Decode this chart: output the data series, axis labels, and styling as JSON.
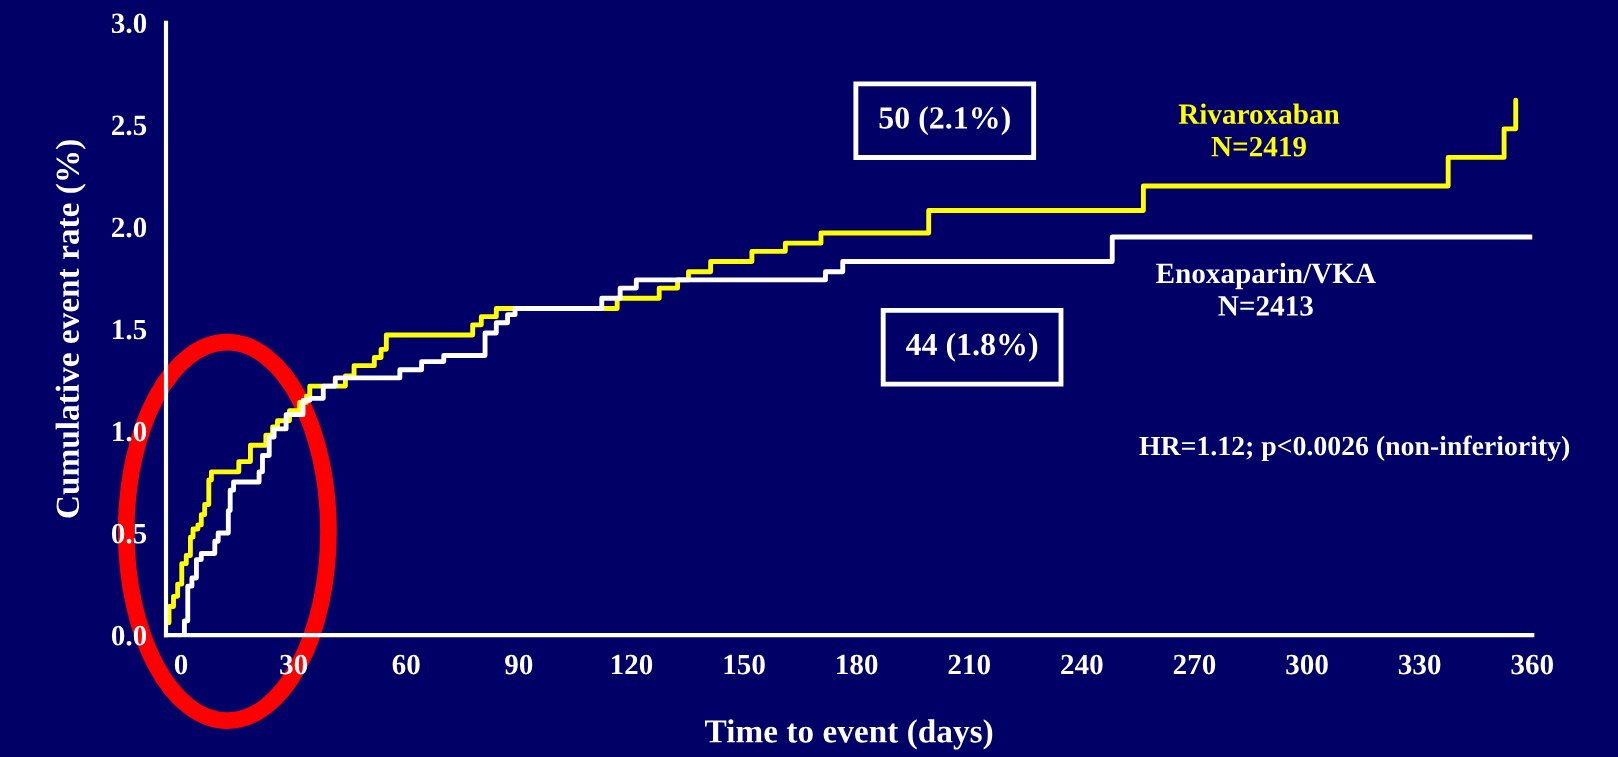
{
  "chart_data": {
    "type": "step",
    "xlabel": "Time to event (days)",
    "ylabel": "Cumulative event rate (%)",
    "series": [
      {
        "name": "Rivaroxaban\nN=2419",
        "color": "#ffff00",
        "x": [
          -3.2,
          -3.2,
          -2.0,
          -0.9,
          0.2,
          1.4,
          2.5,
          3.2,
          4.5,
          5.4,
          6.3,
          7.4,
          8.1,
          15.4,
          18.5,
          22.6,
          24.4,
          25.7,
          28.9,
          31.6,
          33.4,
          34.3,
          43.8,
          46.1,
          51.5,
          53.3,
          54.7,
          77.7,
          80,
          84,
          116.2,
          127.4,
          132.3,
          135.2,
          141.1,
          152.1,
          161.0,
          170.5,
          199.2,
          256.4,
          337.6,
          352.5,
          355.6
        ],
        "values": [
          0.06,
          0.14,
          0.19,
          0.25,
          0.35,
          0.39,
          0.48,
          0.52,
          0.54,
          0.59,
          0.64,
          0.76,
          0.8,
          0.85,
          0.93,
          0.98,
          1.02,
          1.05,
          1.1,
          1.14,
          1.17,
          1.22,
          1.27,
          1.32,
          1.36,
          1.4,
          1.47,
          1.52,
          1.56,
          1.6,
          1.65,
          1.7,
          1.74,
          1.78,
          1.83,
          1.88,
          1.92,
          1.97,
          2.08,
          2.2,
          2.34,
          2.48,
          2.62
        ]
      },
      {
        "name": "Enoxaparin/VKA\nN=2413",
        "color": "#ffffff",
        "x": [
          0.9,
          0.9,
          1.8,
          2.9,
          4.1,
          5.4,
          9.0,
          9.9,
          12.6,
          13.1,
          14.0,
          20.8,
          21.7,
          23.5,
          24.8,
          28.0,
          32.5,
          34.3,
          37.9,
          41.1,
          58.3,
          64.1,
          70.0,
          81,
          84,
          87,
          89,
          112.1,
          117.0,
          121.3,
          171.7,
          176.3,
          248.1,
          359.8
        ],
        "values": [
          0.0,
          0.07,
          0.24,
          0.28,
          0.37,
          0.4,
          0.46,
          0.5,
          0.61,
          0.71,
          0.75,
          0.8,
          0.88,
          0.97,
          1.01,
          1.08,
          1.15,
          1.16,
          1.22,
          1.26,
          1.3,
          1.34,
          1.37,
          1.48,
          1.53,
          1.57,
          1.6,
          1.65,
          1.7,
          1.74,
          1.78,
          1.83,
          1.95,
          1.95
        ]
      }
    ],
    "xlim": [
      -4,
      360
    ],
    "xticks": [
      0,
      30,
      60,
      90,
      120,
      150,
      180,
      210,
      240,
      270,
      300,
      330,
      360
    ],
    "ylim": [
      0,
      3.0
    ],
    "yticks": [
      {
        "value": 0,
        "label": "0.0"
      },
      {
        "value": 0.5,
        "label": "0.5"
      },
      {
        "value": 1.0,
        "label": "1.0"
      },
      {
        "value": 1.5,
        "label": "1.5"
      },
      {
        "value": 2.0,
        "label": "2.0"
      },
      {
        "value": 2.5,
        "label": "2.5"
      },
      {
        "value": 3.0,
        "label": "3.0"
      }
    ],
    "annotations": [
      "50 (2.1%)",
      "44 (1.8%)",
      "HR=1.12; p<0.0026 (non-inferiority)"
    ],
    "grid": false,
    "legend": false,
    "line_style": "solid",
    "marker": "none"
  }
}
